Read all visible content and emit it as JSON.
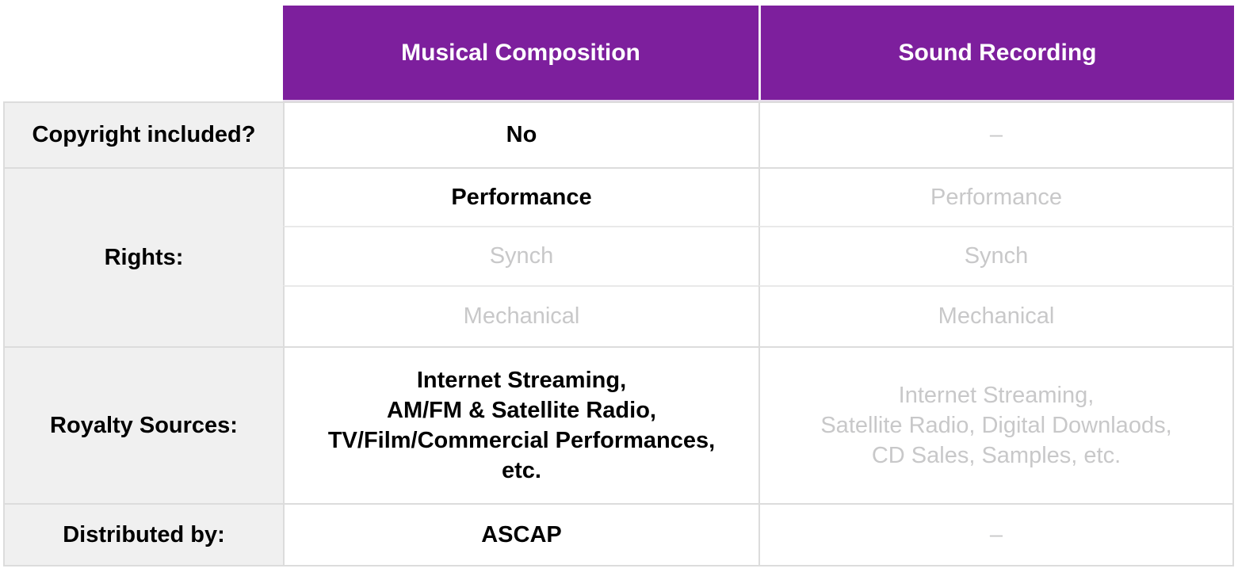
{
  "title": "Musical Composition vs Sound Recording comparison table",
  "theme": {
    "header_bg": "#7D1F9D",
    "header_text_color": "#FFFFFF",
    "label_bg": "#F0F0F0",
    "grid_line": "#DCDCDC",
    "muted_text": "#C8C8C9",
    "active_text": "#000000"
  },
  "header": {
    "col1": "Musical Composition",
    "col2": "Sound Recording"
  },
  "rows": {
    "copyright": {
      "label": "Copyright included?",
      "musical": "No",
      "sound": "–"
    },
    "rights": {
      "label": "Rights:",
      "musical": [
        "Performance",
        "Synch",
        "Mechanical"
      ],
      "sound": [
        "Performance",
        "Synch",
        "Mechanical"
      ]
    },
    "royalty": {
      "label": "Royalty Sources:",
      "musical_lines": [
        "Internet Streaming,",
        "AM/FM & Satellite Radio,",
        "TV/Film/Commercial Performances,",
        "etc."
      ],
      "sound_lines": [
        "Internet Streaming,",
        "Satellite Radio, Digital Downlaods,",
        "CD Sales, Samples, etc."
      ]
    },
    "distributed": {
      "label": "Distributed by:",
      "musical": "ASCAP",
      "sound": "–"
    }
  },
  "chart_data": {
    "type": "table",
    "title": "Musical Composition vs Sound Recording",
    "columns": [
      "",
      "Musical Composition",
      "Sound Recording"
    ],
    "rows": [
      [
        "Copyright included?",
        "No",
        "–"
      ],
      [
        "Rights:",
        "Performance (active), Synch (inactive), Mechanical (inactive)",
        "Performance (inactive), Synch (inactive), Mechanical (inactive)"
      ],
      [
        "Royalty Sources:",
        "Internet Streaming, AM/FM & Satellite Radio, TV/Film/Commercial Performances, etc. (active)",
        "Internet Streaming, Satellite Radio, Digital Downlaods, CD Sales, Samples, etc. (inactive)"
      ],
      [
        "Distributed by:",
        "ASCAP",
        "–"
      ]
    ],
    "layout_hints": {
      "header_fill": "#7D1F9D",
      "label_column_fill": "#F0F0F0",
      "active_style": "bold black",
      "inactive_style": "light gray"
    }
  }
}
